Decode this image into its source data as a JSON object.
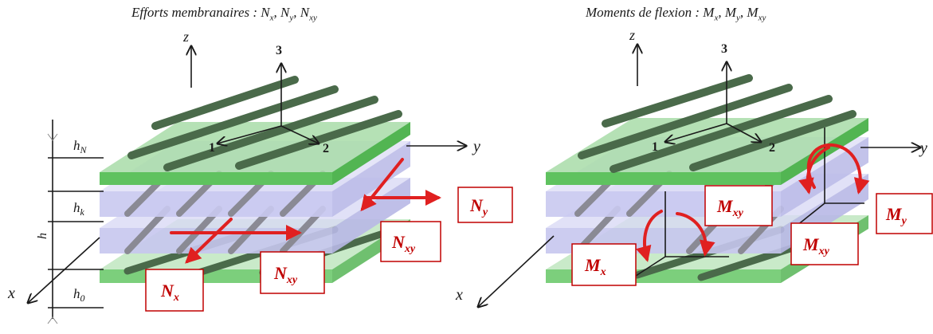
{
  "titles": {
    "left": {
      "text": "Efforts membranaires : ",
      "parts": [
        [
          "N",
          "x"
        ],
        [
          "N",
          "y"
        ],
        [
          "N",
          "xy"
        ]
      ]
    },
    "right": {
      "text": "Moments de flexion : ",
      "parts": [
        [
          "M",
          "x"
        ],
        [
          "M",
          "y"
        ],
        [
          "M",
          "xy"
        ]
      ]
    }
  },
  "axes": {
    "z": "z",
    "y": "y",
    "x": "x",
    "one": "1",
    "two": "2",
    "three": "3"
  },
  "layers": {
    "top": "h",
    "top_sub": "N",
    "mid": "h",
    "mid_sub": "k",
    "bot": "h",
    "bot_sub": "0",
    "total": "h"
  },
  "left_boxes": [
    {
      "main": "N",
      "sub": "y"
    },
    {
      "main": "N",
      "sub": "xy"
    },
    {
      "main": "N",
      "sub": "xy"
    },
    {
      "main": "N",
      "sub": "x"
    }
  ],
  "right_boxes": [
    {
      "main": "M",
      "sub": "xy"
    },
    {
      "main": "M",
      "sub": "y"
    },
    {
      "main": "M",
      "sub": "xy"
    },
    {
      "main": "M",
      "sub": "x"
    }
  ],
  "colors": {
    "green": "#8fd08f",
    "green_dark": "#4fb04f",
    "lavender": "#c9c9f0",
    "fiber_green": "#4a6a4a",
    "fiber_grey": "#808088",
    "red": "#e02020"
  }
}
